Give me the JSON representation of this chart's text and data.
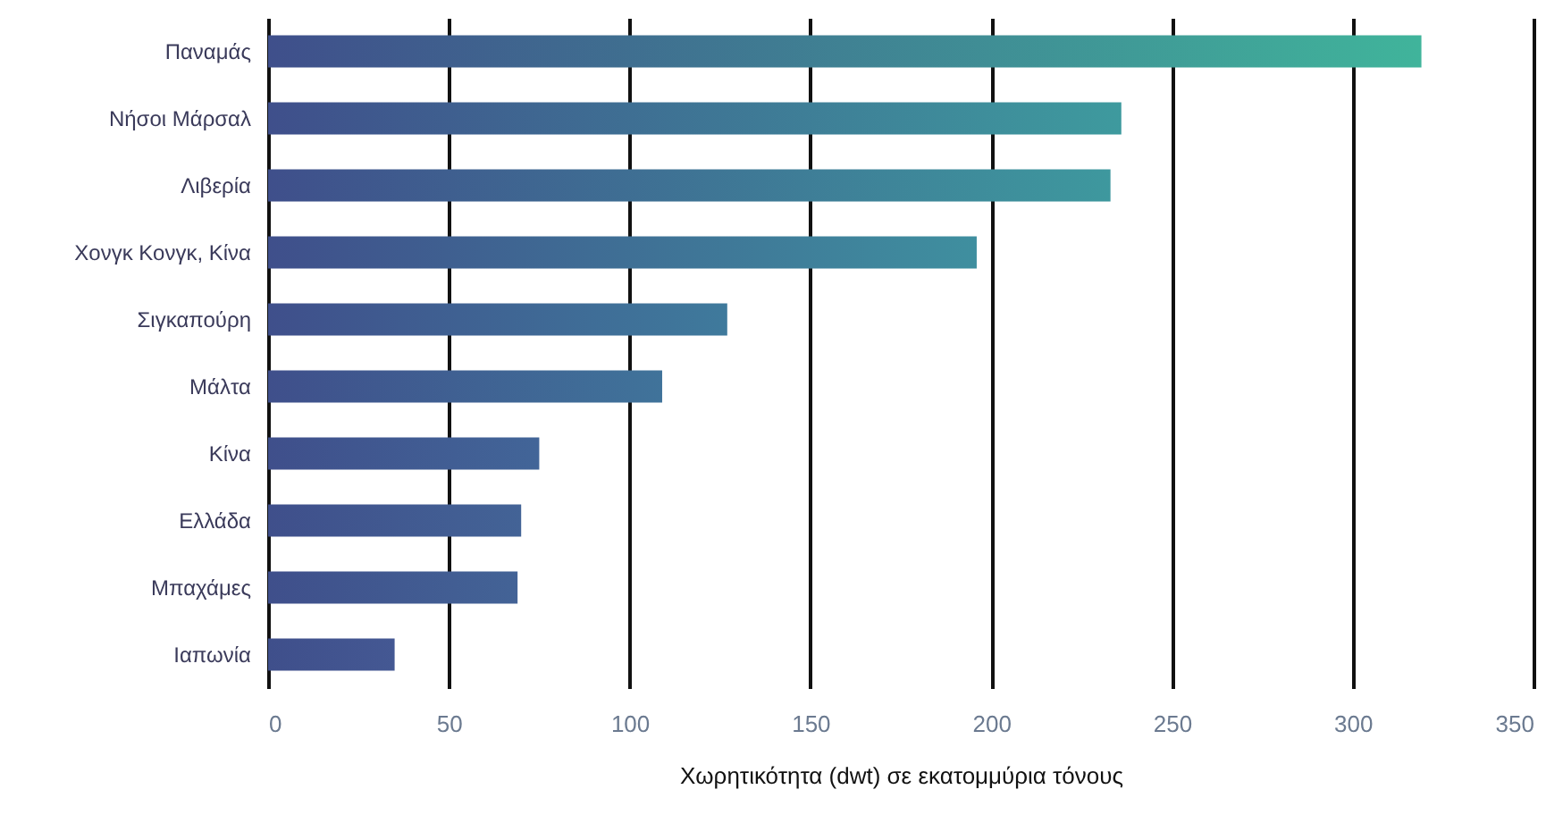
{
  "chart_data": {
    "type": "bar",
    "orientation": "horizontal",
    "xlabel": "Χωρητικότητα (dwt) σε εκατομμύρια τόνους",
    "categories": [
      "Παναμάς",
      "Νήσοι Μάρσαλ",
      "Λιβερία",
      "Χονγκ Κονγκ, Κίνα",
      "Σιγκαπούρη",
      "Μάλτα",
      "Κίνα",
      "Ελλάδα",
      "Μπαχάμες",
      "Ιαπωνία"
    ],
    "values": [
      319,
      236,
      233,
      196,
      127,
      109,
      75,
      70,
      69,
      35
    ],
    "color": "#3f4f8b",
    "colors": [
      "#40b49b",
      "#3e9a9e",
      "#3e989e",
      "#3f8f9f",
      "#3f7a9c",
      "#40739a",
      "#426598",
      "#436396",
      "#436396",
      "#445893"
    ],
    "xlim": [
      0,
      350
    ],
    "xticks": [
      0,
      50,
      100,
      150,
      200,
      250,
      300,
      350
    ],
    "grid": "x"
  }
}
